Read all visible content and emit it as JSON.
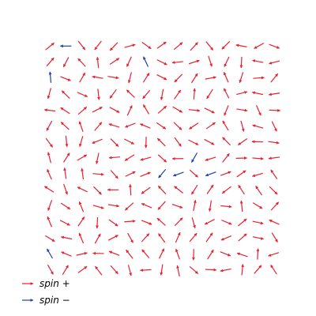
{
  "chart_data": {
    "type": "quiver",
    "title": "",
    "xlabel": "",
    "ylabel": "",
    "grid": false,
    "axes_visible": false,
    "legend_position": "bottom-left",
    "lattice": {
      "rows": 15,
      "cols": 15
    },
    "series": [
      {
        "name": "spin +",
        "color": "#e8202f"
      },
      {
        "name": "spin −",
        "color": "#1f3fae"
      }
    ],
    "seed": 20240611,
    "spin_minus_sites": [
      [
        0,
        1
      ],
      [
        1,
        6
      ],
      [
        2,
        0
      ],
      [
        8,
        7
      ],
      [
        8,
        8
      ],
      [
        7,
        9
      ],
      [
        8,
        10
      ],
      [
        13,
        0
      ]
    ],
    "spin_minus_angles_deg": [
      180,
      115,
      95,
      230,
      200,
      240,
      200,
      120
    ]
  }
}
